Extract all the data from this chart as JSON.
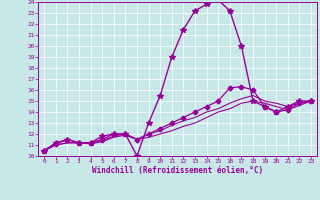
{
  "xlabel": "Windchill (Refroidissement éolien,°C)",
  "background_color": "#c8e8e8",
  "line_color": "#990099",
  "xlim": [
    -0.5,
    23.5
  ],
  "ylim": [
    10,
    24
  ],
  "xticks": [
    0,
    1,
    2,
    3,
    4,
    5,
    6,
    7,
    8,
    9,
    10,
    11,
    12,
    13,
    14,
    15,
    16,
    17,
    18,
    19,
    20,
    21,
    22,
    23
  ],
  "yticks": [
    10,
    11,
    12,
    13,
    14,
    15,
    16,
    17,
    18,
    19,
    20,
    21,
    22,
    23,
    24
  ],
  "lines": [
    {
      "x": [
        0,
        1,
        2,
        3,
        4,
        5,
        6,
        7,
        8,
        9,
        10,
        11,
        12,
        13,
        14,
        15,
        16,
        17,
        18,
        19,
        20,
        21,
        22,
        23
      ],
      "y": [
        10.5,
        11.2,
        11.5,
        11.2,
        11.2,
        11.8,
        12.0,
        12.0,
        10.0,
        13.0,
        15.5,
        19.0,
        21.5,
        23.2,
        23.8,
        24.2,
        23.2,
        20.0,
        15.0,
        14.5,
        14.0,
        14.5,
        15.0,
        15.0
      ],
      "marker": "*",
      "markersize": 4,
      "linewidth": 1.0
    },
    {
      "x": [
        0,
        1,
        2,
        3,
        4,
        5,
        6,
        7,
        8,
        9,
        10,
        11,
        12,
        13,
        14,
        15,
        16,
        17,
        18,
        19,
        20,
        21,
        22,
        23
      ],
      "y": [
        10.5,
        11.1,
        11.5,
        11.2,
        11.2,
        11.5,
        12.0,
        12.0,
        11.5,
        12.0,
        12.5,
        13.0,
        13.5,
        14.0,
        14.5,
        15.0,
        16.2,
        16.3,
        16.0,
        14.5,
        14.0,
        14.2,
        14.8,
        15.0
      ],
      "marker": "D",
      "markersize": 2.5,
      "linewidth": 0.9
    },
    {
      "x": [
        0,
        1,
        2,
        3,
        4,
        5,
        6,
        7,
        8,
        9,
        10,
        11,
        12,
        13,
        14,
        15,
        16,
        17,
        18,
        19,
        20,
        21,
        22,
        23
      ],
      "y": [
        10.5,
        11.0,
        11.2,
        11.2,
        11.2,
        11.4,
        11.8,
        12.0,
        11.5,
        12.0,
        12.3,
        12.8,
        13.2,
        13.5,
        14.0,
        14.3,
        14.8,
        15.2,
        15.5,
        15.0,
        14.8,
        14.5,
        14.8,
        15.0
      ],
      "marker": null,
      "linewidth": 0.8
    },
    {
      "x": [
        0,
        1,
        2,
        3,
        4,
        5,
        6,
        7,
        8,
        9,
        10,
        11,
        12,
        13,
        14,
        15,
        16,
        17,
        18,
        19,
        20,
        21,
        22,
        23
      ],
      "y": [
        10.5,
        11.0,
        11.2,
        11.2,
        11.1,
        11.3,
        11.7,
        11.9,
        11.5,
        11.7,
        12.0,
        12.3,
        12.7,
        13.0,
        13.5,
        14.0,
        14.3,
        14.8,
        15.0,
        14.8,
        14.5,
        14.2,
        14.6,
        15.0
      ],
      "marker": null,
      "linewidth": 0.8
    }
  ]
}
